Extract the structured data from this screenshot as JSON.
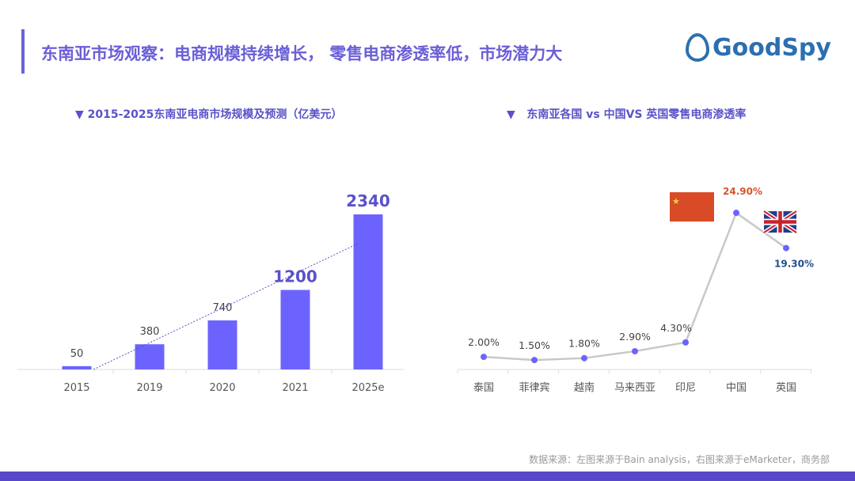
{
  "header": {
    "title": "东南亚市场观察：电商规模持续增长， 零售电商渗透率低，市场潜力大",
    "logo": "GoodSpy"
  },
  "footer": {
    "source": "数据来源：左图来源于Bain analysis，右图来源于eMarketer，商务部"
  },
  "colors": {
    "accent": "#6c63ff",
    "title": "#6a5fd6",
    "china_label": "#d9542b",
    "uk_label": "#1f4e8c",
    "line": "#c8c8c8"
  },
  "chart_data": [
    {
      "type": "bar",
      "title": "▼ 2015-2025东南亚电商市场规模及预测（亿美元）",
      "categories": [
        "2015",
        "2019",
        "2020",
        "2021",
        "2025e"
      ],
      "values": [
        50,
        380,
        740,
        1200,
        2340
      ],
      "labels": [
        "50",
        "380",
        "740",
        "1200",
        "2340"
      ],
      "trendline": "dotted",
      "ylim": [
        0,
        2340
      ]
    },
    {
      "type": "line",
      "title": "▼   东南亚各国 vs 中国VS 英国零售电商渗透率",
      "categories": [
        "泰国",
        "菲律宾",
        "越南",
        "马来西亚",
        "印尼",
        "中国",
        "英国"
      ],
      "values": [
        2.0,
        1.5,
        1.8,
        2.9,
        4.3,
        24.9,
        19.3
      ],
      "labels": [
        "2.00%",
        "1.50%",
        "1.80%",
        "2.90%",
        "4.30%",
        "24.90%",
        "19.30%"
      ],
      "unit": "%",
      "icons": {
        "中国": "china-flag-icon",
        "英国": "uk-flag-icon"
      }
    }
  ]
}
